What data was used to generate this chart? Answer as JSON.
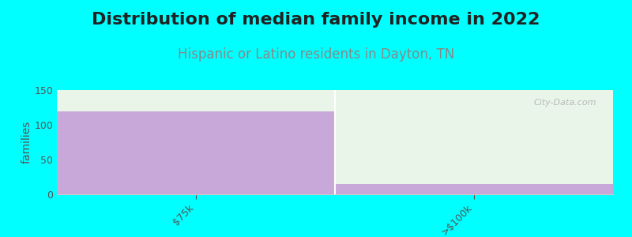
{
  "title": "Distribution of median family income in 2022",
  "subtitle": "Hispanic or Latino residents in Dayton, TN",
  "ylabel": "families",
  "categories": [
    "$75k",
    ">$100k"
  ],
  "bar_values": [
    119,
    15
  ],
  "bar_color": "#c8a8d8",
  "bg_bar_color_top": "#eaf5ea",
  "bg_bar_color_bottom": "#f5faf5",
  "ylim": [
    0,
    150
  ],
  "yticks": [
    0,
    50,
    100,
    150
  ],
  "background_color": "#00ffff",
  "plot_bg_color": "#ffffff",
  "title_fontsize": 16,
  "subtitle_fontsize": 12,
  "subtitle_color": "#888888",
  "ylabel_fontsize": 10,
  "tick_label_fontsize": 9,
  "watermark_text": "City-Data.com",
  "bar_width": 1.0
}
